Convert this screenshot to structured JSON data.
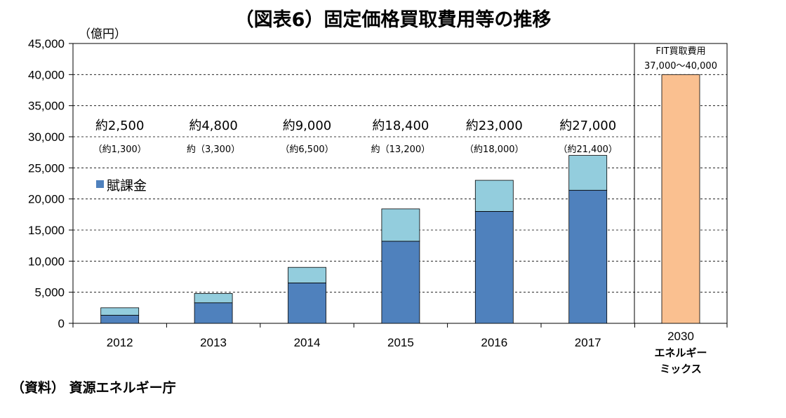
{
  "chart_data": {
    "type": "bar",
    "title": "（図表6）固定価格買取費用等の推移",
    "ylabel": "（億円）",
    "ylim": [
      0,
      45000
    ],
    "yticks": [
      "0",
      "5,000",
      "10,000",
      "15,000",
      "20,000",
      "25,000",
      "30,000",
      "35,000",
      "40,000",
      "45,000"
    ],
    "yticks_values": [
      0,
      5000,
      10000,
      15000,
      20000,
      25000,
      30000,
      35000,
      40000,
      45000
    ],
    "grid": "horizontal dashed",
    "categories": [
      "2012",
      "2013",
      "2014",
      "2015",
      "2016",
      "2017"
    ],
    "series": [
      {
        "name": "賦課金",
        "values": [
          1300,
          3300,
          6500,
          13200,
          18000,
          21400
        ],
        "color": "#4f81bd"
      },
      {
        "values": [
          1200,
          1500,
          2500,
          5200,
          5000,
          5600
        ],
        "color": "#93cddd"
      }
    ],
    "totals": [
      2500,
      4800,
      9000,
      18400,
      23000,
      27000
    ],
    "total_labels": [
      "約2,500",
      "約4,800",
      "約9,000",
      "約18,400",
      "約23,000",
      "約27,000"
    ],
    "sub_labels": [
      "（約1,300）",
      "約（3,300）",
      "（約6,500）",
      "約（13,200）",
      "（約18,000）",
      "（約21,400）"
    ],
    "legend": {
      "label": "賦課金",
      "placement": "left"
    },
    "extra_bar": {
      "category_lines": [
        "2030",
        "エネルギー",
        "ミックス"
      ],
      "value": 40000,
      "color": "#fac090",
      "note_lines": [
        "FIT買取費用",
        "37,000〜40,000"
      ]
    }
  },
  "source": "（資料）  資源エネルギー庁"
}
